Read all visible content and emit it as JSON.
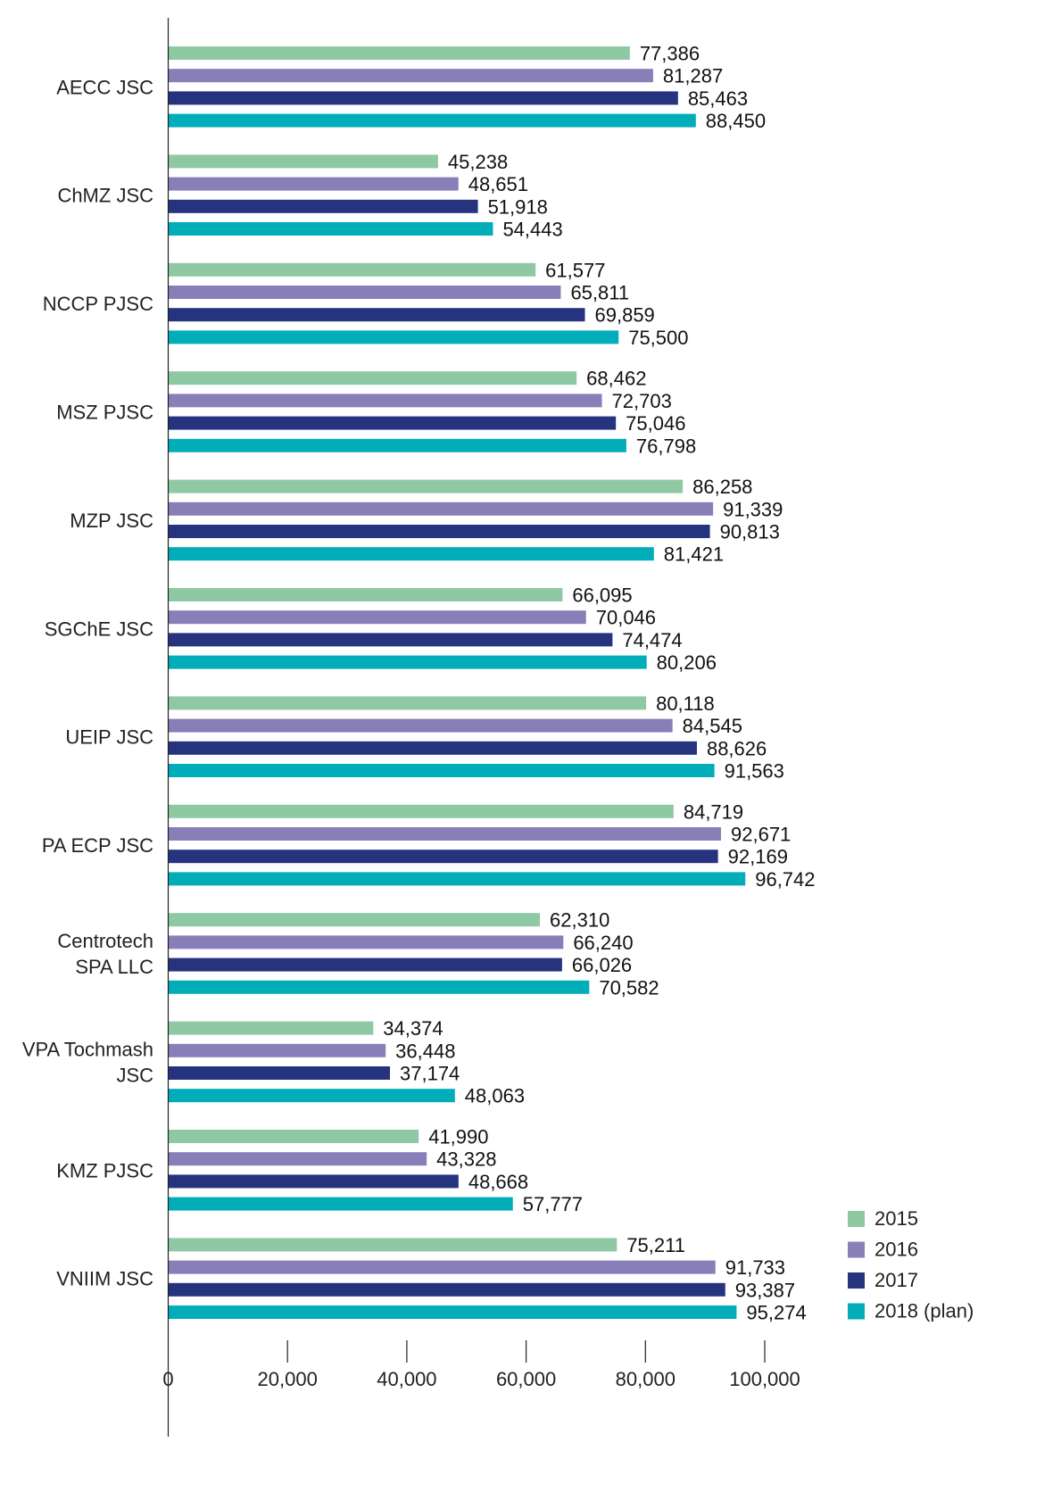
{
  "chart_data": {
    "type": "bar",
    "orientation": "horizontal",
    "title": "",
    "xlabel": "",
    "ylabel": "",
    "xlim": [
      0,
      100000
    ],
    "x_ticks": [
      0,
      20000,
      40000,
      60000,
      80000,
      100000
    ],
    "x_tick_labels": [
      "0",
      "20,000",
      "40,000",
      "60,000",
      "80,000",
      "100,000"
    ],
    "grid": false,
    "legend_position": "bottom-right",
    "categories": [
      [
        "AECC JSC"
      ],
      [
        "ChMZ JSC"
      ],
      [
        "NCCP PJSC"
      ],
      [
        "MSZ PJSC"
      ],
      [
        "MZP JSC"
      ],
      [
        "SGChE JSC"
      ],
      [
        "UEIP JSC"
      ],
      [
        "PA ECP JSC"
      ],
      [
        "Centrotech",
        "SPA LLC"
      ],
      [
        "VPA Tochmash",
        "JSC"
      ],
      [
        "KMZ PJSC"
      ],
      [
        "VNIIM JSC"
      ]
    ],
    "series": [
      {
        "name": "2015",
        "color": "#8fc9a3",
        "values": [
          77386,
          45238,
          61577,
          68462,
          86258,
          66095,
          80118,
          84719,
          62310,
          34374,
          41990,
          75211
        ],
        "labels": [
          "77,386",
          "45,238",
          "61,577",
          "68,462",
          "86,258",
          "66,095",
          "80,118",
          "84,719",
          "62,310",
          "34,374",
          "41,990",
          "75,211"
        ]
      },
      {
        "name": "2016",
        "color": "#887fb8",
        "values": [
          81287,
          48651,
          65811,
          72703,
          91339,
          70046,
          84545,
          92671,
          66240,
          36448,
          43328,
          91733
        ],
        "labels": [
          "81,287",
          "48,651",
          "65,811",
          "72,703",
          "91,339",
          "70,046",
          "84,545",
          "92,671",
          "66,240",
          "36,448",
          "43,328",
          "91,733"
        ]
      },
      {
        "name": "2017",
        "color": "#263480",
        "values": [
          85463,
          51918,
          69859,
          75046,
          90813,
          74474,
          88626,
          92169,
          66026,
          37174,
          48668,
          93387
        ],
        "labels": [
          "85,463",
          "51,918",
          "69,859",
          "75,046",
          "90,813",
          "74,474",
          "88,626",
          "92,169",
          "66,026",
          "37,174",
          "48,668",
          "93,387"
        ]
      },
      {
        "name": "2018 (plan)",
        "color": "#00adb9",
        "values": [
          88450,
          54443,
          75500,
          76798,
          81421,
          80206,
          91563,
          96742,
          70582,
          48063,
          57777,
          95274
        ],
        "labels": [
          "88,450",
          "54,443",
          "75,500",
          "76,798",
          "81,421",
          "80,206",
          "91,563",
          "96,742",
          "70,582",
          "48,063",
          "57,777",
          "95,274"
        ]
      }
    ]
  }
}
